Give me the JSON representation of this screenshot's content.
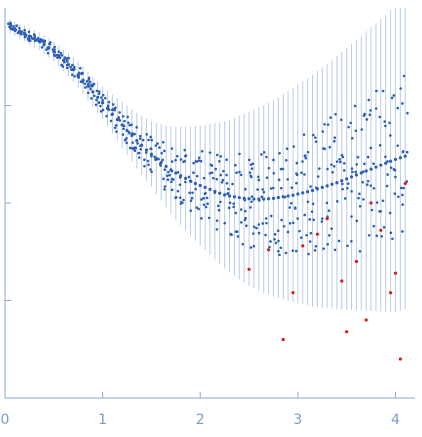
{
  "chart_data": {
    "type": "scatter",
    "title": "",
    "xlabel": "",
    "ylabel": "",
    "xlim": [
      0,
      4.2
    ],
    "ylim": [
      0,
      1
    ],
    "x_ticks": [
      "0",
      "1",
      "2",
      "3",
      "4"
    ],
    "y_ticks_count": 3,
    "grid": false,
    "legend": "none",
    "colors": {
      "main_points": "#2f5fb5",
      "outlier_points": "#d81e1e",
      "error_bars": "#b9cde6",
      "axis": "#8aa8cf"
    },
    "series": [
      {
        "points": [
          [
            0.05,
            0.952
          ],
          [
            0.1,
            0.947
          ],
          [
            0.15,
            0.94
          ],
          [
            0.2,
            0.935
          ],
          [
            0.25,
            0.928
          ],
          [
            0.3,
            0.921
          ],
          [
            0.35,
            0.915
          ],
          [
            0.4,
            0.906
          ],
          [
            0.45,
            0.898
          ],
          [
            0.5,
            0.888
          ],
          [
            0.55,
            0.878
          ],
          [
            0.6,
            0.866
          ],
          [
            0.65,
            0.855
          ],
          [
            0.7,
            0.842
          ],
          [
            0.75,
            0.829
          ],
          [
            0.8,
            0.815
          ],
          [
            0.85,
            0.8
          ],
          [
            0.9,
            0.785
          ],
          [
            0.95,
            0.771
          ],
          [
            1.0,
            0.757
          ],
          [
            1.05,
            0.743
          ],
          [
            1.1,
            0.728
          ],
          [
            1.15,
            0.714
          ],
          [
            1.2,
            0.7
          ],
          [
            1.25,
            0.686
          ],
          [
            1.3,
            0.673
          ],
          [
            1.35,
            0.66
          ],
          [
            1.4,
            0.648
          ],
          [
            1.45,
            0.636
          ],
          [
            1.5,
            0.625
          ],
          [
            1.55,
            0.614
          ],
          [
            1.6,
            0.604
          ],
          [
            1.65,
            0.594
          ],
          [
            1.7,
            0.585
          ],
          [
            1.75,
            0.577
          ],
          [
            1.8,
            0.57
          ],
          [
            1.85,
            0.563
          ],
          [
            1.9,
            0.556
          ],
          [
            1.95,
            0.55
          ],
          [
            2.0,
            0.545
          ],
          [
            2.05,
            0.54
          ],
          [
            2.1,
            0.535
          ],
          [
            2.15,
            0.53
          ],
          [
            2.2,
            0.525
          ],
          [
            2.25,
            0.521
          ],
          [
            2.3,
            0.518
          ],
          [
            2.35,
            0.516
          ],
          [
            2.4,
            0.514
          ],
          [
            2.45,
            0.512
          ],
          [
            2.5,
            0.511
          ],
          [
            2.55,
            0.51
          ],
          [
            2.6,
            0.51
          ],
          [
            2.65,
            0.51
          ],
          [
            2.7,
            0.511
          ],
          [
            2.75,
            0.512
          ],
          [
            2.8,
            0.514
          ],
          [
            2.85,
            0.516
          ],
          [
            2.9,
            0.518
          ],
          [
            2.95,
            0.52
          ],
          [
            3.0,
            0.523
          ],
          [
            3.05,
            0.526
          ],
          [
            3.1,
            0.529
          ],
          [
            3.15,
            0.532
          ],
          [
            3.2,
            0.536
          ],
          [
            3.25,
            0.54
          ],
          [
            3.3,
            0.544
          ],
          [
            3.35,
            0.548
          ],
          [
            3.4,
            0.552
          ],
          [
            3.45,
            0.557
          ],
          [
            3.5,
            0.562
          ],
          [
            3.55,
            0.567
          ],
          [
            3.6,
            0.572
          ],
          [
            3.65,
            0.577
          ],
          [
            3.7,
            0.582
          ],
          [
            3.75,
            0.587
          ],
          [
            3.8,
            0.592
          ],
          [
            3.85,
            0.597
          ],
          [
            3.9,
            0.602
          ],
          [
            3.95,
            0.607
          ],
          [
            4.0,
            0.612
          ],
          [
            4.05,
            0.616
          ],
          [
            4.1,
            0.62
          ]
        ],
        "error_halfwidth": [
          [
            0.0,
            0.012
          ],
          [
            0.5,
            0.018
          ],
          [
            1.0,
            0.03
          ],
          [
            1.5,
            0.06
          ],
          [
            2.0,
            0.11
          ],
          [
            2.5,
            0.16
          ],
          [
            3.0,
            0.2
          ],
          [
            3.5,
            0.24
          ],
          [
            4.0,
            0.28
          ]
        ]
      },
      {
        "points": [
          [
            2.5,
            0.33
          ],
          [
            2.7,
            0.38
          ],
          [
            2.85,
            0.15
          ],
          [
            2.95,
            0.27
          ],
          [
            3.05,
            0.39
          ],
          [
            3.2,
            0.42
          ],
          [
            3.3,
            0.46
          ],
          [
            3.45,
            0.3
          ],
          [
            3.5,
            0.17
          ],
          [
            3.6,
            0.35
          ],
          [
            3.7,
            0.2
          ],
          [
            3.75,
            0.5
          ],
          [
            3.85,
            0.43
          ],
          [
            3.95,
            0.27
          ],
          [
            4.0,
            0.32
          ],
          [
            4.05,
            0.1
          ],
          [
            4.1,
            0.55
          ]
        ]
      }
    ]
  }
}
